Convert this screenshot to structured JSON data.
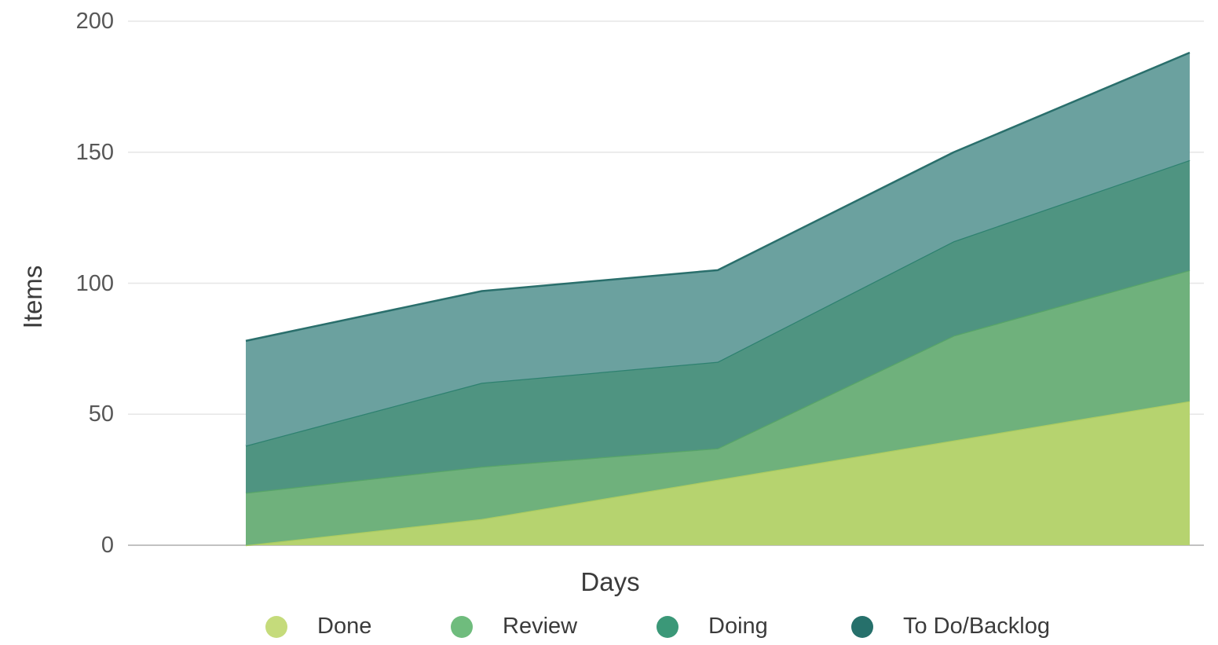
{
  "chart_data": {
    "type": "area",
    "stacked": true,
    "title": "",
    "xlabel": "Days",
    "ylabel": "Items",
    "x": [
      1,
      2,
      3,
      4,
      5
    ],
    "x_tick_labels_visible": false,
    "y_axis": {
      "range": [
        0,
        200
      ],
      "ticks": [
        0,
        50,
        100,
        150,
        200
      ],
      "tick_labels": [
        "0",
        "50",
        "100",
        "150",
        "200"
      ],
      "grid": true
    },
    "series": [
      {
        "name": "Done",
        "values": [
          0,
          10,
          25,
          40,
          55
        ],
        "legend_color": "#c5db7b",
        "fill_color": "#b6d36f",
        "line_color": "#abcc61"
      },
      {
        "name": "Review",
        "values": [
          20,
          20,
          12,
          40,
          50
        ],
        "legend_color": "#6fbc7d",
        "fill_color": "#6fb17c",
        "line_color": "#57a469"
      },
      {
        "name": "Doing",
        "values": [
          18,
          32,
          33,
          36,
          42
        ],
        "legend_color": "#3b9878",
        "fill_color": "#4f9481",
        "line_color": "#2e8170"
      },
      {
        "name": "To Do/Backlog",
        "values": [
          40,
          35,
          35,
          34,
          41
        ],
        "legend_color": "#26706b",
        "fill_color": "#6ba19f",
        "line_color": "#2a6f6c"
      }
    ],
    "cumulative_totals": [
      78,
      97,
      105,
      150,
      188
    ],
    "legend": {
      "position": "bottom",
      "items": [
        "Done",
        "Review",
        "Doing",
        "To Do/Backlog"
      ]
    },
    "colors": {
      "gridline": "#e6e6e6",
      "zeroline": "#c2c2c2",
      "tick_text": "#575757",
      "axis_title_text": "#3b3b3b",
      "legend_text": "#3b3b3b",
      "background": "#ffffff"
    }
  }
}
